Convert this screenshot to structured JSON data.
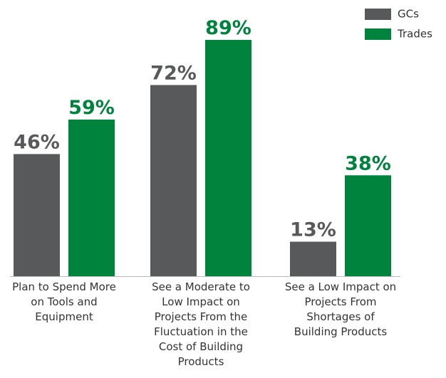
{
  "chart_data": {
    "type": "bar",
    "categories": [
      "Plan to Spend More on Tools and Equipment",
      "See a Moderate to Low Impact on Projects From the Fluctuation in the Cost of Building Products",
      "See a Low Impact on Projects From Shortages of Building Products"
    ],
    "series": [
      {
        "name": "GCs",
        "color": "#58595b",
        "values": [
          46,
          72,
          13
        ],
        "value_labels": [
          "46%",
          "72%",
          "13%"
        ]
      },
      {
        "name": "Trades",
        "color": "#00843d",
        "values": [
          59,
          89,
          38
        ],
        "value_labels": [
          "59%",
          "89%",
          "38%"
        ]
      }
    ],
    "ylim": [
      0,
      100
    ],
    "legend": "top-right"
  }
}
